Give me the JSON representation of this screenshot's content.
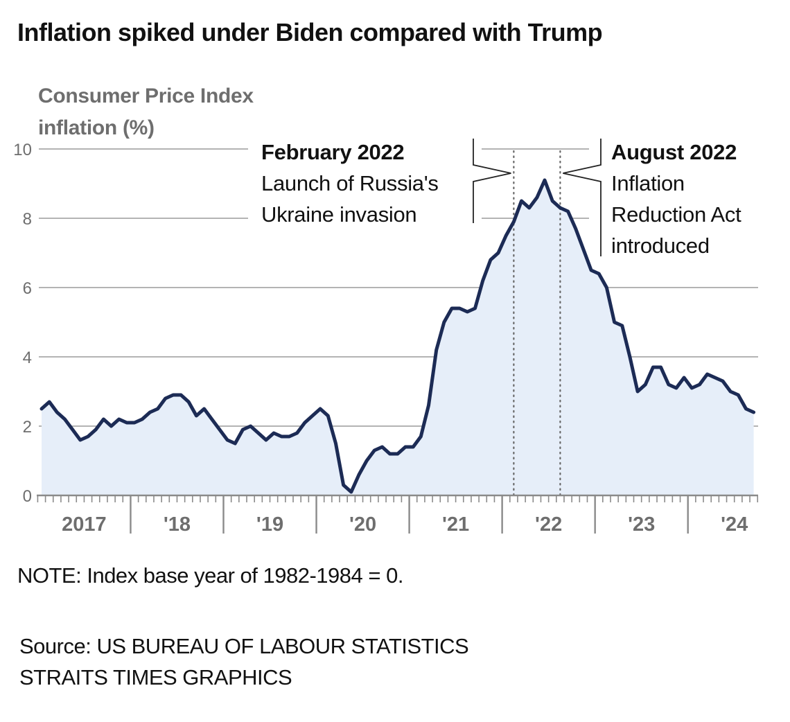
{
  "chart_data": {
    "type": "area",
    "title": "Inflation spiked under Biden compared with Trump",
    "ylabel": "Consumer Price Index inflation (%)",
    "xlabel": "",
    "ylim": [
      0,
      10
    ],
    "yticks": [
      0,
      2,
      4,
      6,
      8,
      10
    ],
    "grid": true,
    "x_start": "2017-01",
    "x_end": "2024-09",
    "x_frequency": "monthly",
    "xtick_labels": [
      "2017",
      "'18",
      "'19",
      "'20",
      "'21",
      "'22",
      "'23",
      "'24"
    ],
    "series": [
      {
        "name": "CPI inflation",
        "color": "#1c2b55",
        "fill": "#e6eef9",
        "values": [
          2.5,
          2.7,
          2.4,
          2.2,
          1.9,
          1.6,
          1.7,
          1.9,
          2.2,
          2.0,
          2.2,
          2.1,
          2.1,
          2.2,
          2.4,
          2.5,
          2.8,
          2.9,
          2.9,
          2.7,
          2.3,
          2.5,
          2.2,
          1.9,
          1.6,
          1.5,
          1.9,
          2.0,
          1.8,
          1.6,
          1.8,
          1.7,
          1.7,
          1.8,
          2.1,
          2.3,
          2.5,
          2.3,
          1.5,
          0.3,
          0.1,
          0.6,
          1.0,
          1.3,
          1.4,
          1.2,
          1.2,
          1.4,
          1.4,
          1.7,
          2.6,
          4.2,
          5.0,
          5.4,
          5.4,
          5.3,
          5.4,
          6.2,
          6.8,
          7.0,
          7.5,
          7.9,
          8.5,
          8.3,
          8.6,
          9.1,
          8.5,
          8.3,
          8.2,
          7.7,
          7.1,
          6.5,
          6.4,
          6.0,
          5.0,
          4.9,
          4.0,
          3.0,
          3.2,
          3.7,
          3.7,
          3.2,
          3.1,
          3.4,
          3.1,
          3.2,
          3.5,
          3.4,
          3.3,
          3.0,
          2.9,
          2.5,
          2.4
        ]
      }
    ],
    "annotations": [
      {
        "id": "feb-2022",
        "date": "2022-02",
        "heading": "February 2022",
        "lines": [
          "Launch of Russia's",
          "Ukraine invasion"
        ]
      },
      {
        "id": "aug-2022",
        "date": "2022-08",
        "heading": "August 2022",
        "lines": [
          "Inflation",
          "Reduction Act",
          "introduced"
        ]
      }
    ]
  },
  "header": {
    "title": "Inflation spiked under Biden compared with Trump",
    "ylabel_line1": "Consumer Price Index",
    "ylabel_line2": "inflation (%)"
  },
  "footer": {
    "note": "NOTE: Index base year of 1982-1984 = 0.",
    "source_line1": "Source: US BUREAU OF LABOUR STATISTICS",
    "source_line2": "STRAITS TIMES GRAPHICS"
  }
}
